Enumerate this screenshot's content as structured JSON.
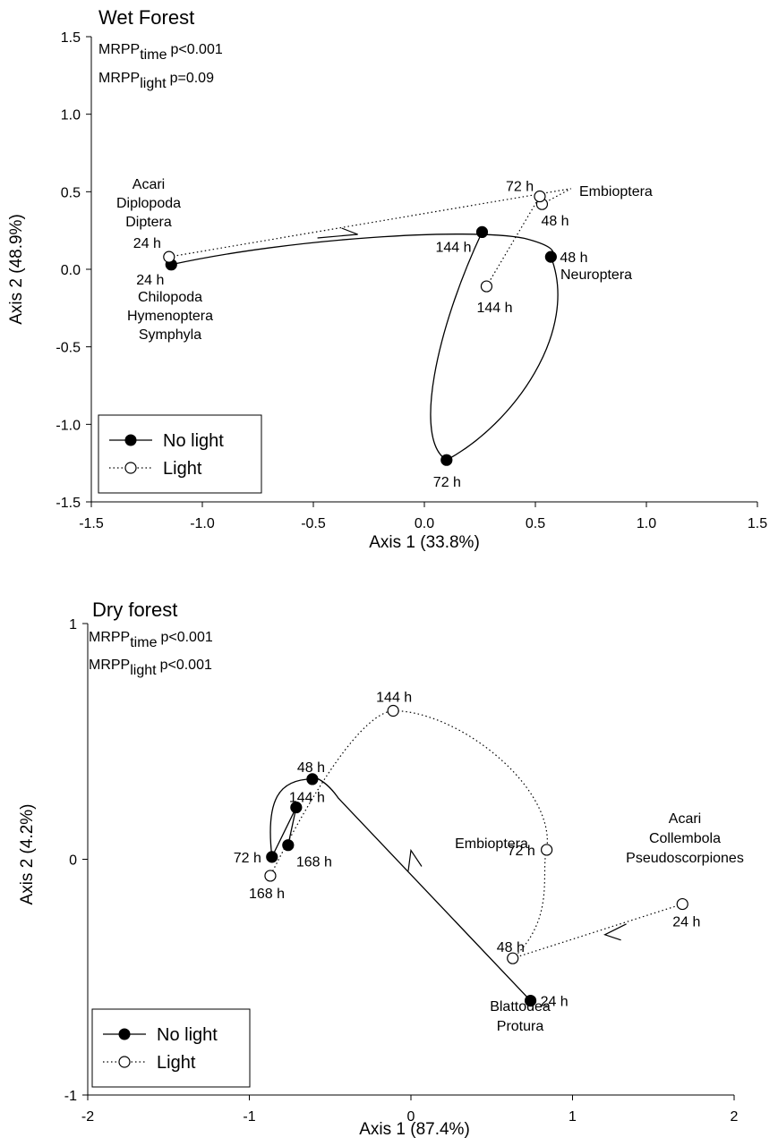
{
  "chart_data": [
    {
      "type": "scatter",
      "title": "Wet Forest",
      "xlabel": "Axis 1 (33.8%)",
      "ylabel": "Axis 2 (48.9%)",
      "xlim": [
        -1.5,
        1.5
      ],
      "ylim": [
        -1.5,
        1.5
      ],
      "xticks": [
        -1.5,
        -1.0,
        -0.5,
        0.0,
        0.5,
        1.0,
        1.5
      ],
      "xtick_labels": [
        "-1.5",
        "-1.0",
        "-0.5",
        "0.0",
        "0.5",
        "1.0",
        "1.5"
      ],
      "yticks": [
        -1.5,
        -1.0,
        -0.5,
        0.0,
        0.5,
        1.0,
        1.5
      ],
      "ytick_labels": [
        "-1.5",
        "-1.0",
        "-0.5",
        "0.0",
        "0.5",
        "1.0",
        "1.5"
      ],
      "mrpp": [
        {
          "name": "MRPP",
          "sub": "time",
          "p": "p<0.001"
        },
        {
          "name": "MRPP",
          "sub": "light",
          "p": "p=0.09"
        }
      ],
      "legend": {
        "position": "bottom-left",
        "entries": [
          "No light",
          "Light"
        ]
      },
      "series": [
        {
          "name": "No light",
          "style": "solid",
          "marker": "filled",
          "points": [
            {
              "label": "24 h",
              "x": -1.14,
              "y": 0.03
            },
            {
              "label": "48 h",
              "x": 0.57,
              "y": 0.08
            },
            {
              "label": "72 h",
              "x": 0.1,
              "y": -1.23
            },
            {
              "label": "144 h",
              "x": 0.26,
              "y": 0.24
            }
          ]
        },
        {
          "name": "Light",
          "style": "dotted",
          "marker": "open",
          "points": [
            {
              "label": "24 h",
              "x": -1.15,
              "y": 0.08
            },
            {
              "label": "48 h",
              "x": 0.53,
              "y": 0.42
            },
            {
              "label": "72 h",
              "x": 0.52,
              "y": 0.47
            },
            {
              "label": "144 h",
              "x": 0.28,
              "y": -0.11
            }
          ]
        }
      ],
      "annotations": [
        {
          "lines": [
            "Acari",
            "Diplopoda",
            "Diptera"
          ]
        },
        {
          "lines": [
            "Chilopoda",
            "Hymenoptera",
            "Symphyla"
          ]
        },
        {
          "lines": [
            "Embioptera"
          ]
        },
        {
          "lines": [
            "Neuroptera"
          ]
        }
      ]
    },
    {
      "type": "scatter",
      "title": "Dry forest",
      "xlabel": "Axis 1 (87.4%)",
      "ylabel": "Axis 2 (4.2%)",
      "xlim": [
        -2,
        2
      ],
      "ylim": [
        -1,
        1
      ],
      "xticks": [
        -2,
        -1,
        0,
        1,
        2
      ],
      "xtick_labels": [
        "-2",
        "-1",
        "0",
        "1",
        "2"
      ],
      "yticks": [
        -1,
        0,
        1
      ],
      "ytick_labels": [
        "-1",
        "0",
        "1"
      ],
      "mrpp": [
        {
          "name": "MRPP",
          "sub": "time",
          "p": "p<0.001"
        },
        {
          "name": "MRPP",
          "sub": "light",
          "p": "p<0.001"
        }
      ],
      "legend": {
        "position": "bottom-left",
        "entries": [
          "No light",
          "Light"
        ]
      },
      "series": [
        {
          "name": "No light",
          "style": "solid",
          "marker": "filled",
          "points": [
            {
              "label": "24 h",
              "x": 0.74,
              "y": -0.6
            },
            {
              "label": "48 h",
              "x": -0.61,
              "y": 0.34
            },
            {
              "label": "72 h",
              "x": -0.86,
              "y": 0.01
            },
            {
              "label": "144 h",
              "x": -0.71,
              "y": 0.22
            },
            {
              "label": "168 h",
              "x": -0.76,
              "y": 0.06
            }
          ]
        },
        {
          "name": "Light",
          "style": "dotted",
          "marker": "open",
          "points": [
            {
              "label": "24 h",
              "x": 1.68,
              "y": -0.19
            },
            {
              "label": "48 h",
              "x": 0.63,
              "y": -0.42
            },
            {
              "label": "72 h",
              "x": 0.84,
              "y": 0.04
            },
            {
              "label": "144 h",
              "x": -0.11,
              "y": 0.63
            },
            {
              "label": "168 h",
              "x": -0.87,
              "y": -0.07
            }
          ]
        }
      ],
      "annotations": [
        {
          "lines": [
            "Embioptera"
          ]
        },
        {
          "lines": [
            "Acari",
            "Collembola",
            "Pseudoscorpiones"
          ]
        },
        {
          "lines": [
            "Blattodea",
            "Protura"
          ]
        }
      ]
    }
  ]
}
